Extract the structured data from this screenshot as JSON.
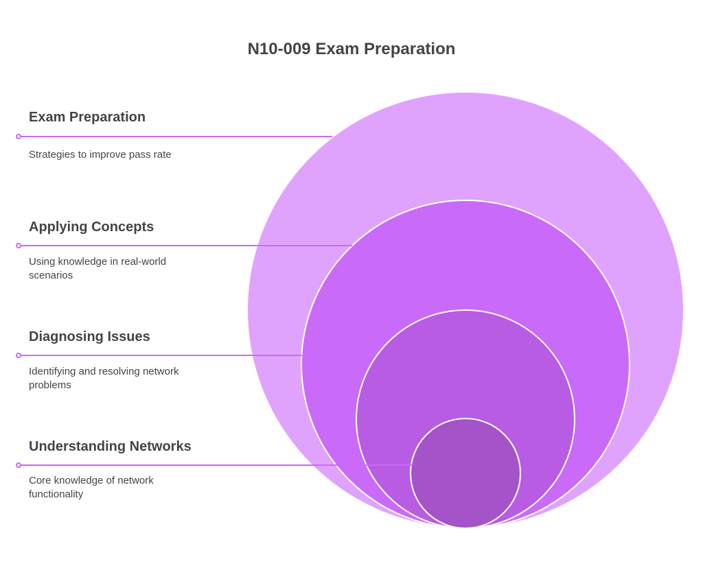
{
  "title": "N10-009 Exam Preparation",
  "items": [
    {
      "heading": "Exam Preparation",
      "description": "Strategies to improve pass rate"
    },
    {
      "heading": "Applying Concepts",
      "description": "Using knowledge in real-world scenarios"
    },
    {
      "heading": "Diagnosing Issues",
      "description": "Identifying and resolving network problems"
    },
    {
      "heading": "Understanding Networks",
      "description": "Core knowledge of network functionality"
    }
  ]
}
